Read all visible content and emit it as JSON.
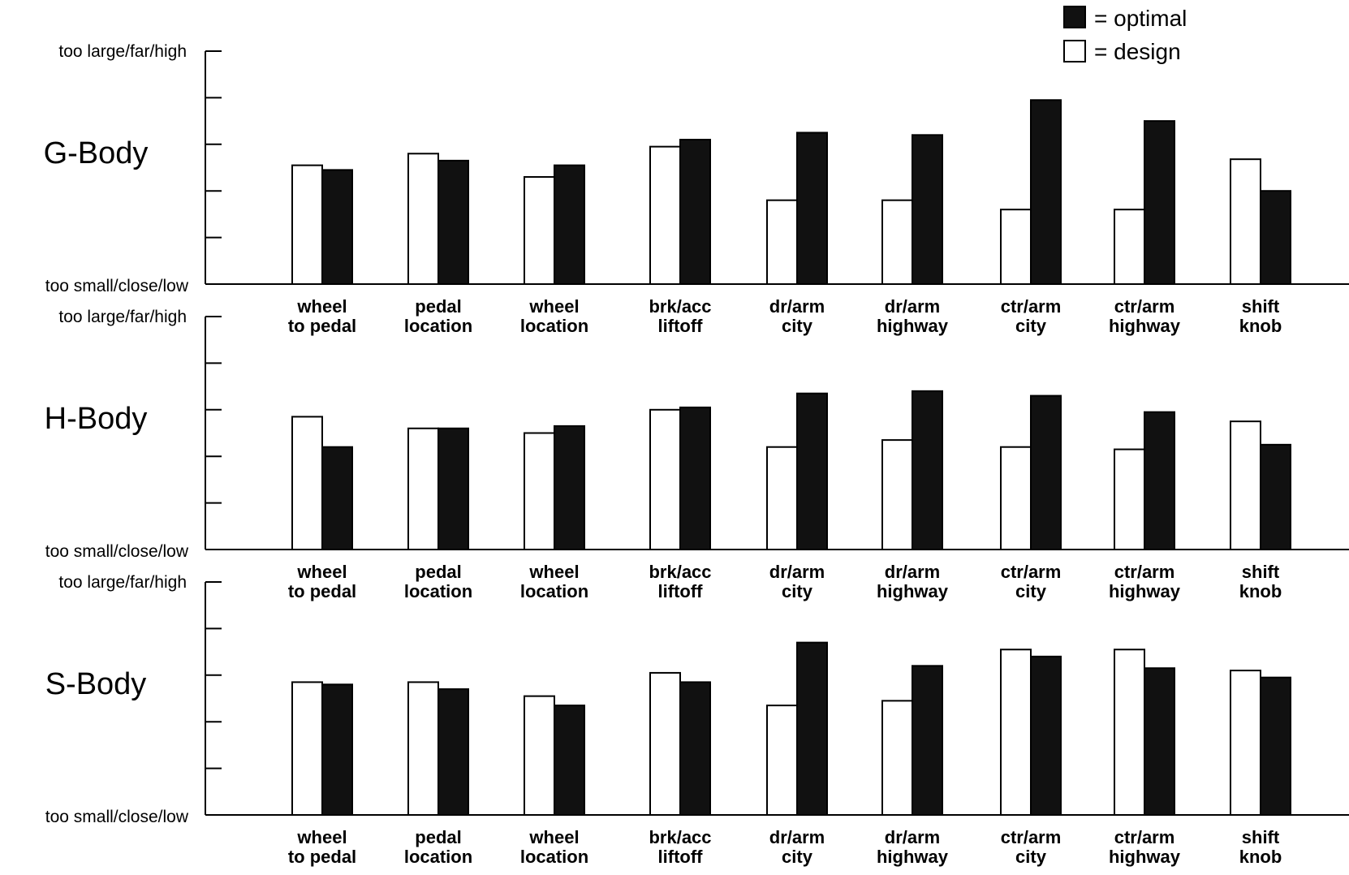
{
  "legend": {
    "optimal": "= optimal",
    "design": "= design"
  },
  "colors": {
    "optimal": "#111111",
    "design": "#ffffff",
    "axis": "#000000"
  },
  "chart_data": [
    {
      "type": "bar",
      "title": "G-Body",
      "ytick_top": "too large/far/high",
      "ytick_bottom": "too small/close/low",
      "ylim": [
        0,
        5
      ],
      "categories": [
        [
          "wheel",
          "to pedal"
        ],
        [
          "pedal",
          "location"
        ],
        [
          "wheel",
          "location"
        ],
        [
          "brk/acc",
          "liftoff"
        ],
        [
          "dr/arm",
          "city"
        ],
        [
          "dr/arm",
          "highway"
        ],
        [
          "ctr/arm",
          "city"
        ],
        [
          "ctr/arm",
          "highway"
        ],
        [
          "shift",
          "knob"
        ]
      ],
      "series": [
        {
          "name": "design",
          "values": [
            2.55,
            2.8,
            2.3,
            2.95,
            1.8,
            1.8,
            1.6,
            1.6,
            2.68
          ]
        },
        {
          "name": "optimal",
          "values": [
            2.45,
            2.65,
            2.55,
            3.1,
            3.25,
            3.2,
            3.95,
            3.5,
            2.0
          ]
        }
      ]
    },
    {
      "type": "bar",
      "title": "H-Body",
      "ytick_top": "too large/far/high",
      "ytick_bottom": "too small/close/low",
      "ylim": [
        0,
        5
      ],
      "categories": [
        [
          "wheel",
          "to pedal"
        ],
        [
          "pedal",
          "location"
        ],
        [
          "wheel",
          "location"
        ],
        [
          "brk/acc",
          "liftoff"
        ],
        [
          "dr/arm",
          "city"
        ],
        [
          "dr/arm",
          "highway"
        ],
        [
          "ctr/arm",
          "city"
        ],
        [
          "ctr/arm",
          "highway"
        ],
        [
          "shift",
          "knob"
        ]
      ],
      "series": [
        {
          "name": "design",
          "values": [
            2.85,
            2.6,
            2.5,
            3.0,
            2.2,
            2.35,
            2.2,
            2.15,
            2.75
          ]
        },
        {
          "name": "optimal",
          "values": [
            2.2,
            2.6,
            2.65,
            3.05,
            3.35,
            3.4,
            3.3,
            2.95,
            2.25
          ]
        }
      ]
    },
    {
      "type": "bar",
      "title": "S-Body",
      "ytick_top": "too large/far/high",
      "ytick_bottom": "too small/close/low",
      "ylim": [
        0,
        5
      ],
      "categories": [
        [
          "wheel",
          "to pedal"
        ],
        [
          "pedal",
          "location"
        ],
        [
          "wheel",
          "location"
        ],
        [
          "brk/acc",
          "liftoff"
        ],
        [
          "dr/arm",
          "city"
        ],
        [
          "dr/arm",
          "highway"
        ],
        [
          "ctr/arm",
          "city"
        ],
        [
          "ctr/arm",
          "highway"
        ],
        [
          "shift",
          "knob"
        ]
      ],
      "series": [
        {
          "name": "design",
          "values": [
            2.85,
            2.85,
            2.55,
            3.05,
            2.35,
            2.45,
            3.55,
            3.55,
            3.1
          ]
        },
        {
          "name": "optimal",
          "values": [
            2.8,
            2.7,
            2.35,
            2.85,
            3.7,
            3.2,
            3.4,
            3.15,
            2.95
          ]
        }
      ]
    }
  ]
}
